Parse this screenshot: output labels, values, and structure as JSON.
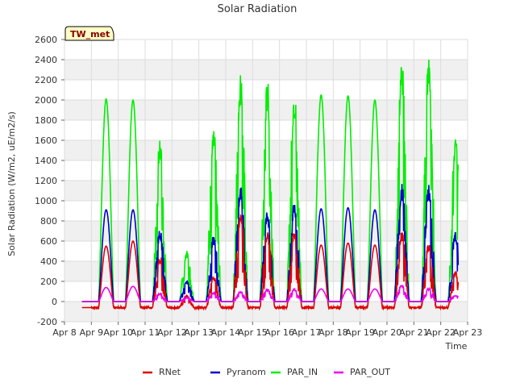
{
  "chart_data": {
    "type": "line",
    "title": "Solar Radiation",
    "xlabel": "Time",
    "ylabel": "Solar Radiation (W/m2, uE/m2/s)",
    "station_label": "TW_met",
    "x_ticks": [
      "Apr 8",
      "Apr 9",
      "Apr 10",
      "Apr 11",
      "Apr 12",
      "Apr 13",
      "Apr 14",
      "Apr 15",
      "Apr 16",
      "Apr 17",
      "Apr 18",
      "Apr 19",
      "Apr 20",
      "Apr 21",
      "Apr 22",
      "Apr 23"
    ],
    "xlim": [
      "Apr 8",
      "Apr 23"
    ],
    "ylim": [
      -200,
      2600
    ],
    "y_ticks": [
      -200,
      0,
      200,
      400,
      600,
      800,
      1000,
      1200,
      1400,
      1600,
      1800,
      2000,
      2200,
      2400,
      2600
    ],
    "grid": true,
    "legend_position": "bottom",
    "days": [
      "Apr 9",
      "Apr 10",
      "Apr 11",
      "Apr 12",
      "Apr 13",
      "Apr 14",
      "Apr 15",
      "Apr 16",
      "Apr 17",
      "Apr 18",
      "Apr 19",
      "Apr 20",
      "Apr 21",
      "Apr 22"
    ],
    "series": [
      {
        "name": "RNet",
        "color": "#dd0000",
        "night_value": -60,
        "daily_peak": [
          550,
          600,
          450,
          60,
          250,
          900,
          700,
          700,
          560,
          580,
          560,
          700,
          580,
          300
        ],
        "cloudy": [
          false,
          false,
          true,
          true,
          true,
          true,
          true,
          true,
          false,
          false,
          false,
          true,
          true,
          true
        ]
      },
      {
        "name": "Pyranom",
        "color": "#0000cc",
        "night_value": 0,
        "daily_peak": [
          910,
          910,
          720,
          200,
          650,
          1150,
          900,
          980,
          920,
          930,
          910,
          1180,
          1180,
          700
        ],
        "cloudy": [
          false,
          false,
          true,
          true,
          true,
          true,
          true,
          true,
          false,
          false,
          false,
          true,
          true,
          true
        ]
      },
      {
        "name": "PAR_IN",
        "color": "#00ee00",
        "night_value": 0,
        "daily_peak": [
          2010,
          2000,
          1600,
          510,
          1700,
          2280,
          2200,
          2130,
          2050,
          2040,
          2000,
          2410,
          2420,
          1640
        ],
        "cloudy": [
          false,
          false,
          true,
          true,
          true,
          true,
          true,
          true,
          false,
          false,
          false,
          true,
          true,
          true
        ]
      },
      {
        "name": "PAR_OUT",
        "color": "#ee00ee",
        "night_value": 0,
        "daily_peak": [
          140,
          150,
          80,
          40,
          90,
          100,
          120,
          125,
          125,
          125,
          125,
          170,
          130,
          60
        ],
        "cloudy": [
          false,
          false,
          true,
          true,
          true,
          true,
          true,
          true,
          false,
          false,
          false,
          true,
          true,
          true
        ]
      }
    ]
  }
}
